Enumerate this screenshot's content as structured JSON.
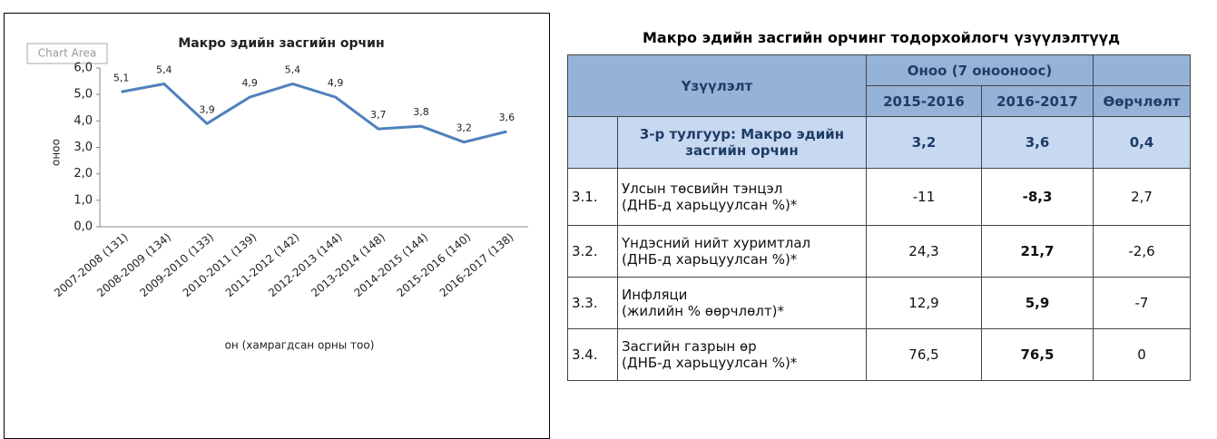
{
  "chart_data": {
    "type": "line",
    "title": "Макро эдийн засгийн орчин",
    "chart_area_label": "Chart Area",
    "x_label": "он (хамрагдсан орны тоо)",
    "y_label": "оноо",
    "categories": [
      "2007-2008 (131)",
      "2008-2009 (134)",
      "2009-2010 (133)",
      "2010-2011 (139)",
      "2011-2012 (142)",
      "2012-2013 (144)",
      "2013-2014 (148)",
      "2014-2015 (144)",
      "2015-2016 (140)",
      "2016-2017 (138)"
    ],
    "values": [
      5.1,
      5.4,
      3.9,
      4.9,
      5.4,
      4.9,
      3.7,
      3.8,
      3.2,
      3.6
    ],
    "value_labels": [
      "5,1",
      "5,4",
      "3,9",
      "4,9",
      "5,4",
      "4,9",
      "3,7",
      "3,8",
      "3,2",
      "3,6"
    ],
    "color": "#4f81bd",
    "ylim": [
      0,
      6
    ],
    "yticks": [
      {
        "value": 0,
        "label": "0,0"
      },
      {
        "value": 1,
        "label": "1,0"
      },
      {
        "value": 2,
        "label": "2,0"
      },
      {
        "value": 3,
        "label": "3,0"
      },
      {
        "value": 4,
        "label": "4,0"
      },
      {
        "value": 5,
        "label": "5,0"
      },
      {
        "value": 6,
        "label": "6,0"
      }
    ],
    "grid": false
  },
  "table": {
    "title": "Макро эдийн засгийн орчинг тодорхойлогч үзүүлэлтүүд",
    "header": {
      "indicator": "Үзүүлэлт",
      "score_group": "Оноо (7 онооноос)",
      "columns": [
        "2015-2016",
        "2016-2017",
        "Өөрчлөлт"
      ]
    },
    "pillar": {
      "label": [
        "3-р тулгуур: Макро эдийн",
        "засгийн орчин"
      ],
      "values": [
        "3,2",
        "3,6",
        "0,4"
      ]
    },
    "rows": [
      {
        "no": "3.1.",
        "label": [
          "Улсын төсвийн тэнцэл",
          "(ДНБ-д харьцуулсан %)*"
        ],
        "values": [
          "-11",
          "-8,3",
          "2,7"
        ]
      },
      {
        "no": "3.2.",
        "label": [
          "Үндэсний нийт хуримтлал",
          "(ДНБ-д харьцуулсан %)*"
        ],
        "values": [
          "24,3",
          "21,7",
          "-2,6"
        ]
      },
      {
        "no": "3.3.",
        "label": [
          "Инфляци",
          "(жилийн % өөрчлөлт)*"
        ],
        "values": [
          "12,9",
          "5,9",
          "-7"
        ]
      },
      {
        "no": "3.4.",
        "label": [
          "Засгийн газрын өр",
          "(ДНБ-д харьцуулсан %)*"
        ],
        "values": [
          "76,5",
          "76,5",
          "0"
        ]
      }
    ]
  }
}
